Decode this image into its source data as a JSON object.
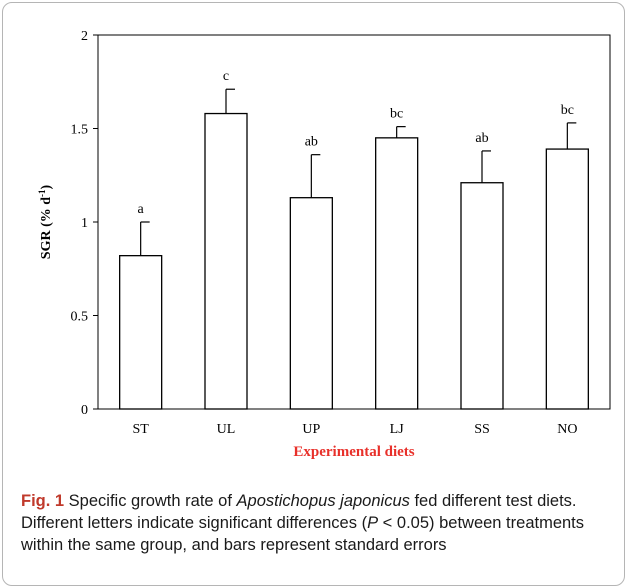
{
  "chart_data": {
    "type": "bar",
    "categories": [
      "ST",
      "UL",
      "UP",
      "LJ",
      "SS",
      "NO"
    ],
    "values": [
      0.82,
      1.58,
      1.13,
      1.45,
      1.21,
      1.39
    ],
    "errors": [
      0.18,
      0.13,
      0.23,
      0.06,
      0.17,
      0.14
    ],
    "significance": [
      "a",
      "c",
      "ab",
      "bc",
      "ab",
      "bc"
    ],
    "ylim": [
      0,
      2
    ],
    "yticks": [
      "0",
      "0.5",
      "1",
      "1.5",
      "2"
    ],
    "ylabel_main": "SGR (% d",
    "ylabel_sup": "-1",
    "ylabel_close": ")",
    "xlabel": "Experimental diets",
    "grid": false,
    "bar_fill": "#ffffff",
    "bar_stroke": "#000000",
    "xlabel_color": "#e8302a"
  },
  "caption": {
    "label": "Fig. 1",
    "text_1": " Specific growth rate of ",
    "species": "Apostichopus japonicus",
    "text_2": " fed different test diets. Different letters indicate significant differences (",
    "p": "P",
    "text_3": " < 0.05) between treatments within the same group, and bars represent standard errors"
  }
}
